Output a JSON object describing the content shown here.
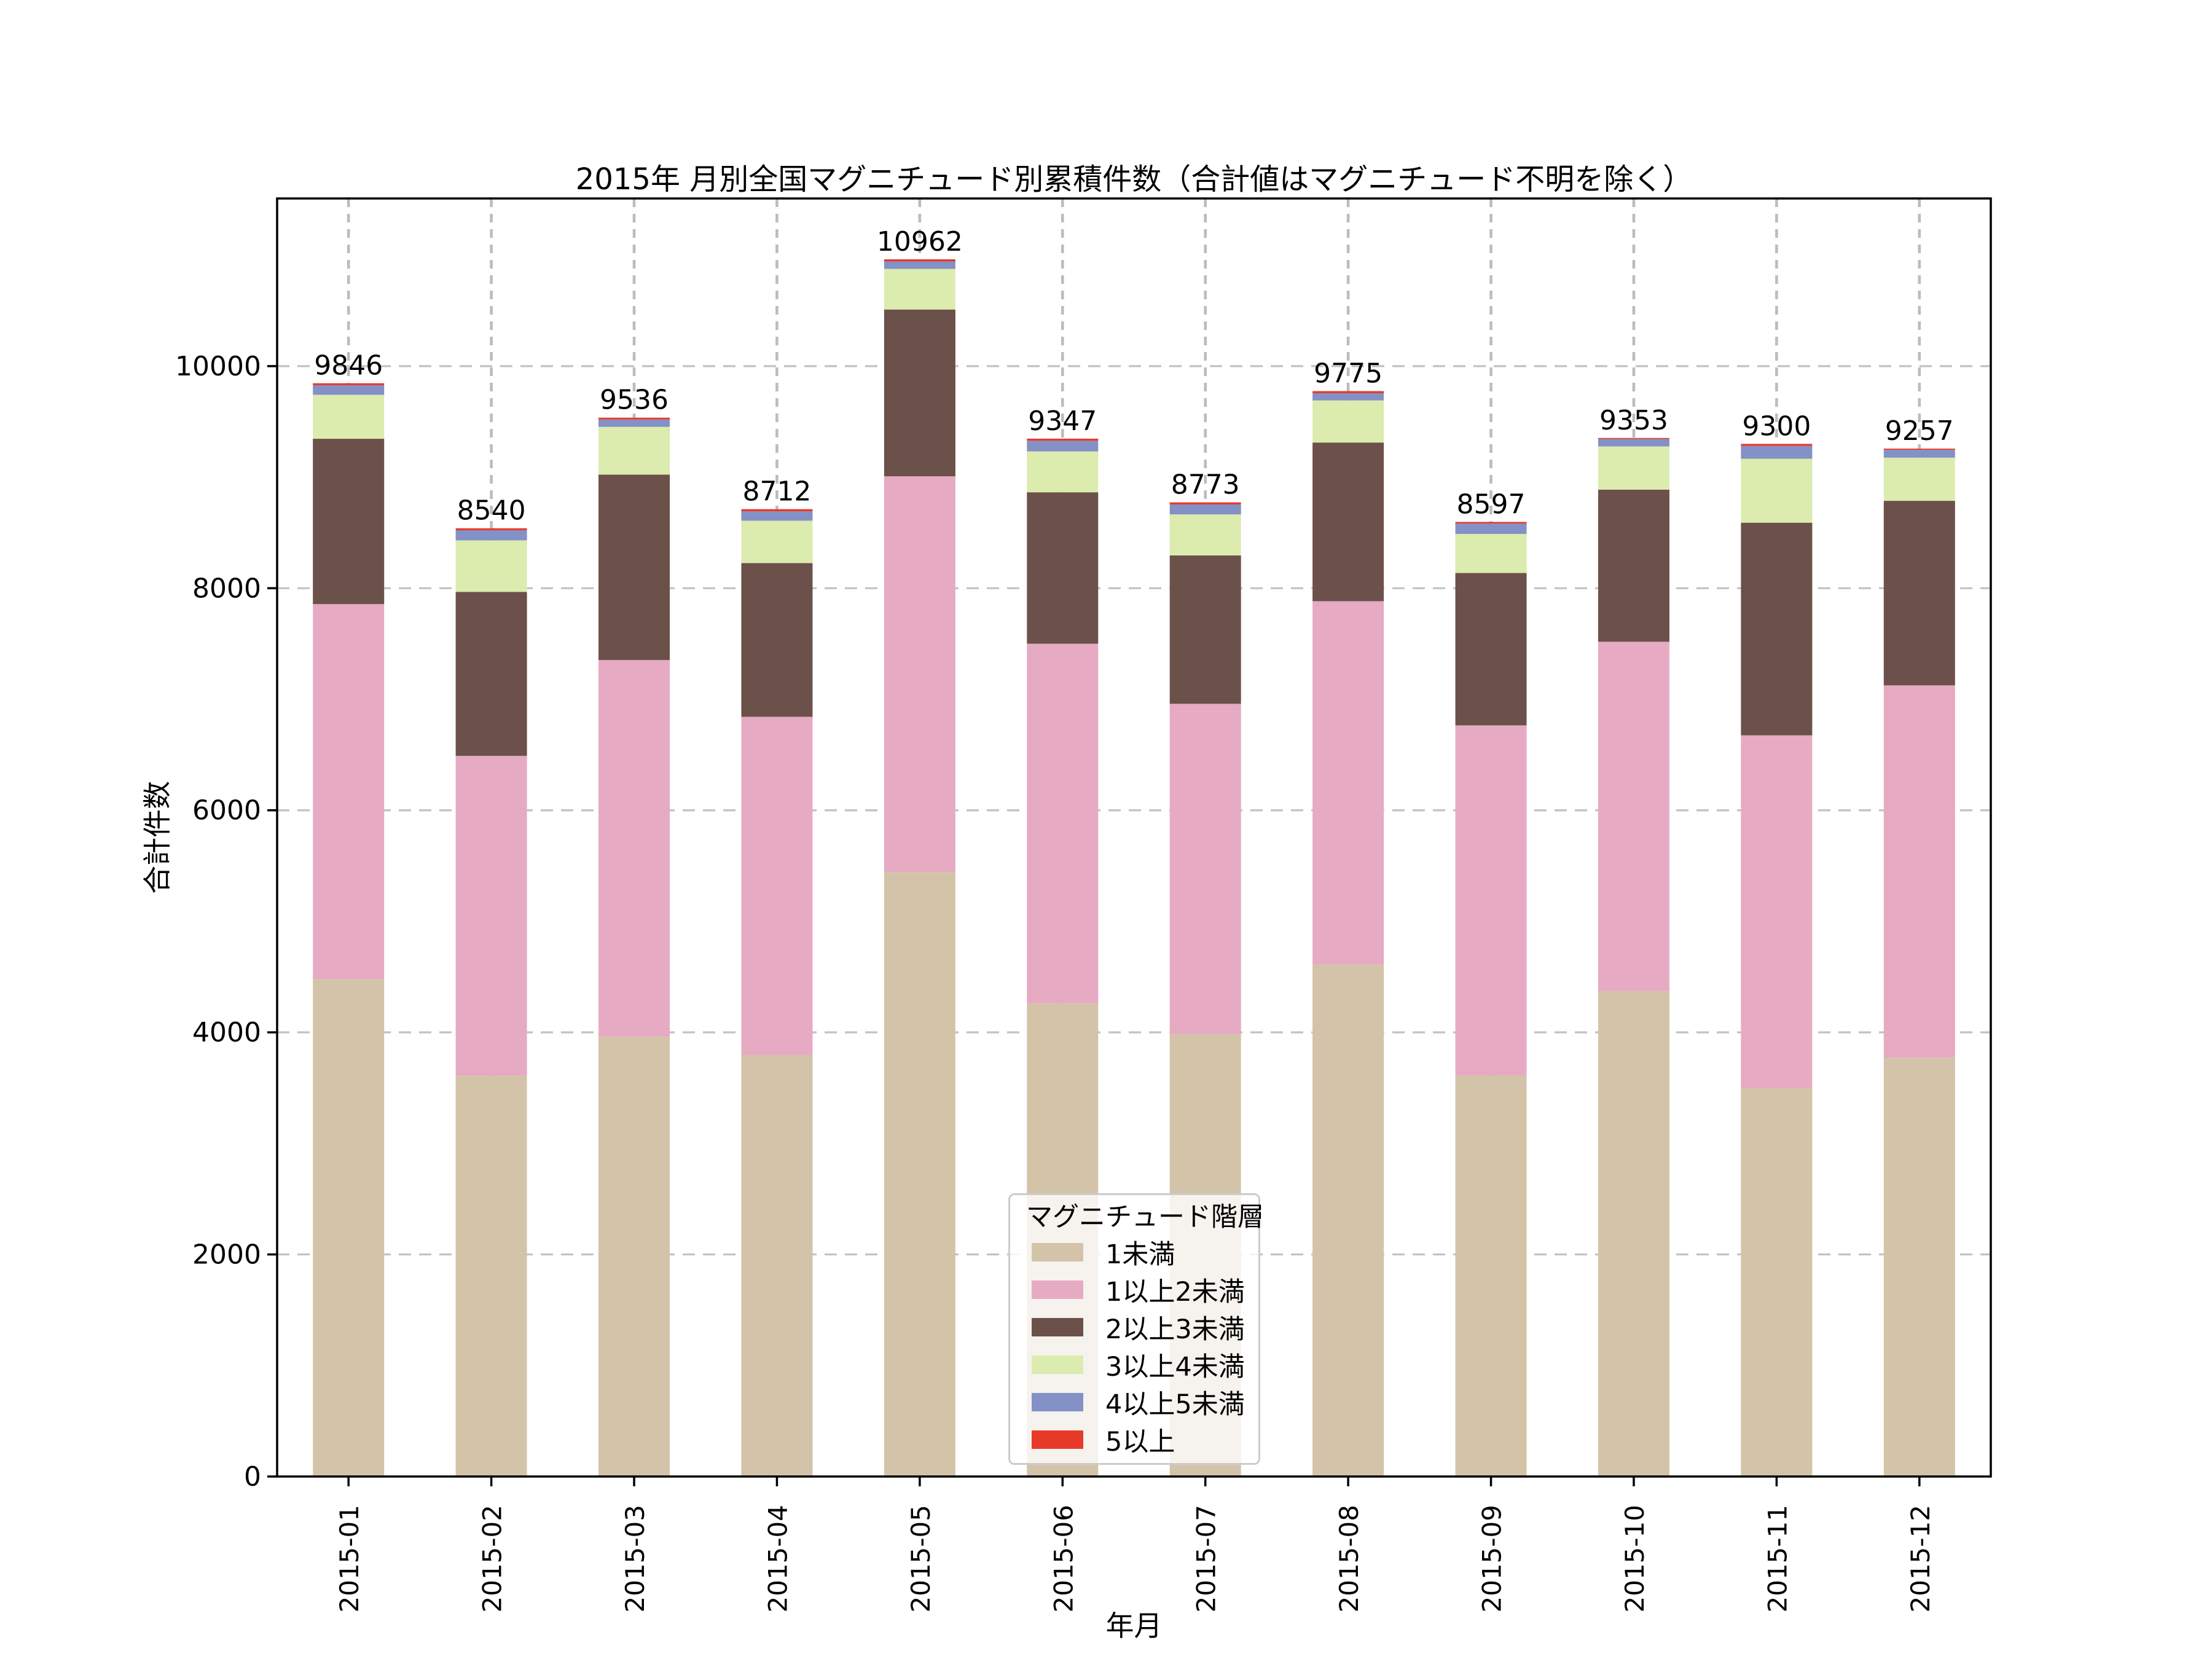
{
  "chart_data": {
    "type": "bar",
    "stacked": true,
    "title": "2015年 月別全国マグニチュード別累積件数（合計値はマグニチュード不明を除く）",
    "xlabel": "年月",
    "ylabel": "合計件数",
    "ylim": [
      0,
      11510
    ],
    "yticks": [
      0,
      2000,
      4000,
      6000,
      8000,
      10000
    ],
    "grid": true,
    "legend_title": "マグニチュード階層",
    "legend_position": "inside lower-center",
    "categories": [
      "2015-01",
      "2015-02",
      "2015-03",
      "2015-04",
      "2015-05",
      "2015-06",
      "2015-07",
      "2015-08",
      "2015-09",
      "2015-10",
      "2015-11",
      "2015-12"
    ],
    "totals": [
      9846,
      8540,
      9536,
      8712,
      10962,
      9347,
      8773,
      9775,
      8597,
      9353,
      9300,
      9257
    ],
    "series": [
      {
        "name": "1未満",
        "color": "#d3c3a8",
        "values": [
          4480,
          3610,
          3961,
          3796,
          5444,
          4260,
          3985,
          4610,
          3611,
          4374,
          3497,
          3772
        ]
      },
      {
        "name": "1以上2未満",
        "color": "#e6aac3",
        "values": [
          3377,
          2880,
          3392,
          3046,
          3564,
          3240,
          2974,
          3273,
          3154,
          3144,
          3178,
          3353
        ]
      },
      {
        "name": "2以上3未満",
        "color": "#6b5149",
        "values": [
          1489,
          1477,
          1670,
          1384,
          1502,
          1364,
          1336,
          1429,
          1372,
          1370,
          1915,
          1662
        ]
      },
      {
        "name": "3以上4未満",
        "color": "#dcebae",
        "values": [
          396,
          464,
          430,
          382,
          366,
          368,
          370,
          379,
          352,
          389,
          576,
          389
        ]
      },
      {
        "name": "4以上5未満",
        "color": "#8391c6",
        "values": [
          86,
          91,
          67,
          84,
          67,
          96,
          89,
          65,
          93,
          67,
          115,
          70
        ]
      },
      {
        "name": "5以上",
        "color": "#e83a2b",
        "values": [
          18,
          18,
          16,
          20,
          19,
          19,
          19,
          19,
          15,
          9,
          19,
          11
        ]
      }
    ],
    "axis_colors": {
      "spine": "#000000",
      "h_grid": "#c2c2c2",
      "v_grid": "#bcbcbc",
      "text": "#000000"
    }
  }
}
